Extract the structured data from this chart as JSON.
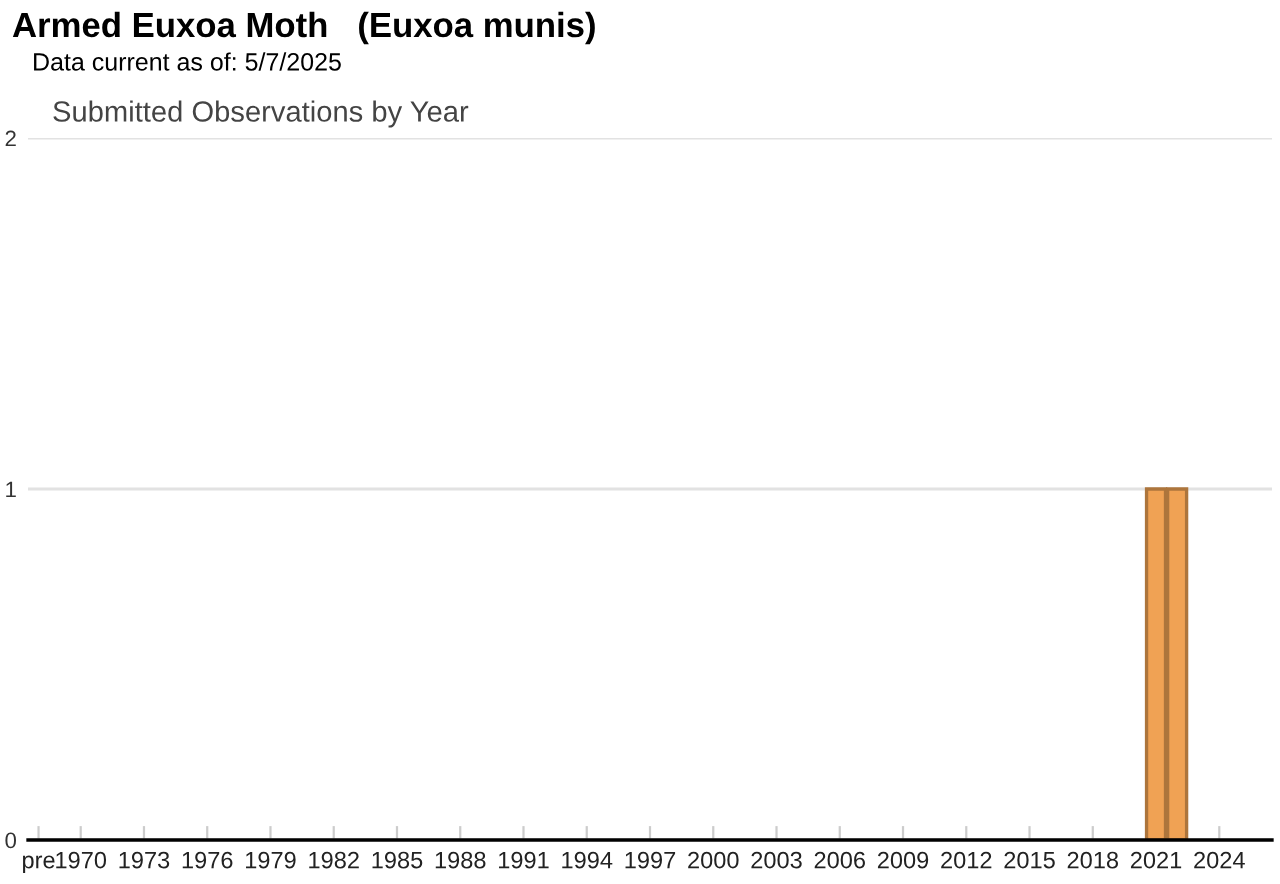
{
  "chart_data": {
    "type": "bar",
    "title": "Armed Euxoa Moth   (Euxoa munis)",
    "subtitle": "Data current as of: 5/7/2025",
    "annotations": [
      "Submitted Observations by Year"
    ],
    "x": [
      2021,
      2022
    ],
    "values": [
      1,
      1
    ],
    "color": "#f0a254",
    "xlim": [
      1967.5,
      2026.5
    ],
    "xticks": [
      {
        "value": 1968,
        "label": "pre"
      },
      1970,
      1973,
      1976,
      1979,
      1982,
      1985,
      1988,
      1991,
      1994,
      1997,
      2000,
      2003,
      2006,
      2009,
      2012,
      2015,
      2018,
      2021,
      2024
    ],
    "ylim": [
      0,
      2
    ],
    "yticks": [
      0,
      1,
      2
    ],
    "grid": "y"
  }
}
